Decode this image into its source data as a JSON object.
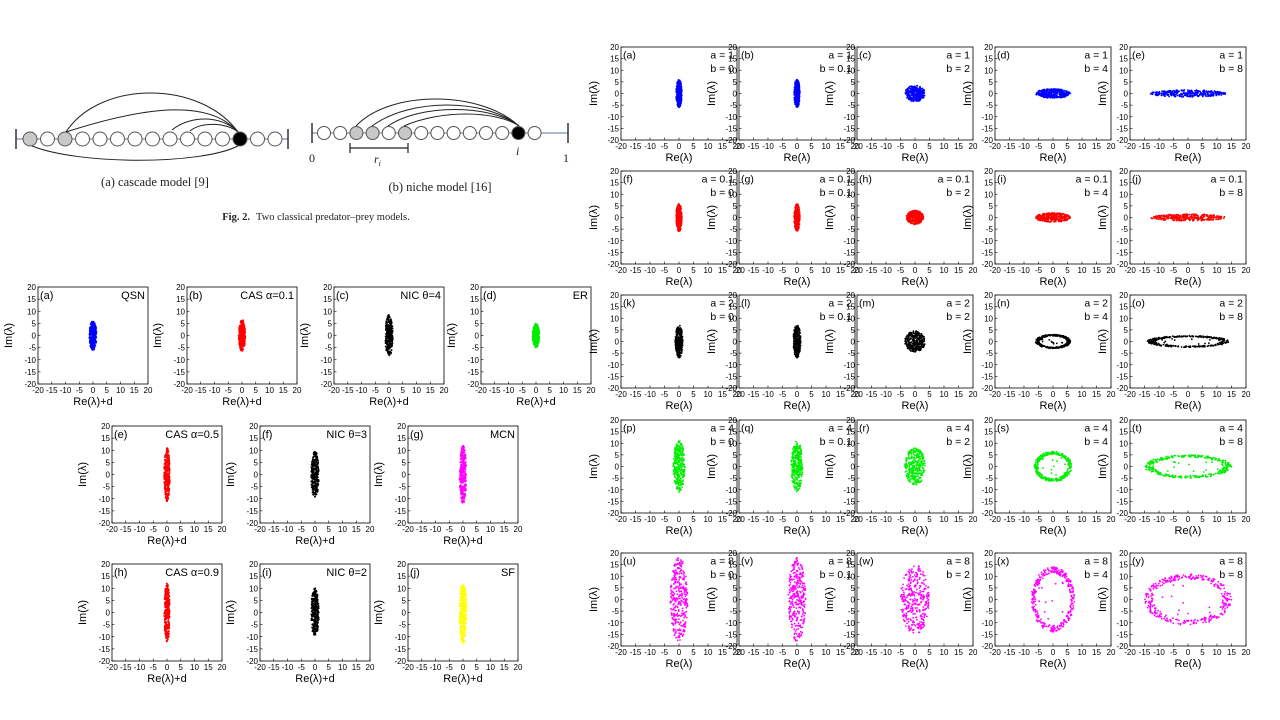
{
  "figure2": {
    "panel_a_caption": "(a) cascade model [9]",
    "panel_b_caption": "(b) niche model [16]",
    "caption_label": "Fig. 2.",
    "caption_text": "Two classical predator–prey models.",
    "niche_axis_start": "0",
    "niche_axis_end": "1",
    "niche_range_label": "r",
    "niche_range_subscript": "i",
    "niche_node_label": "i"
  },
  "colors": {
    "blue": "#0000ff",
    "red": "#ff0000",
    "black": "#000000",
    "green": "#00ee00",
    "magenta": "#ff00ff",
    "yellow": "#ffff00"
  },
  "chart_data": [
    {
      "id": "left-grid",
      "type": "scatter",
      "xlabel": "Re(λ)+d",
      "ylabel": "Im(λ)",
      "xlim": [
        -20,
        20
      ],
      "ylim": [
        -20,
        20
      ],
      "xticks": [
        -20,
        -15,
        -10,
        -5,
        0,
        5,
        10,
        15,
        20
      ],
      "yticks": [
        20,
        15,
        10,
        5,
        0,
        -5,
        -10,
        -15,
        -20
      ],
      "grid": false,
      "panels": [
        {
          "tag": "(a)",
          "title": "QSN",
          "color": "blue",
          "shape": "ellipse",
          "rx": 1.3,
          "ry": 6.0
        },
        {
          "tag": "(b)",
          "title": "CAS α=0.1",
          "color": "red",
          "shape": "ellipse",
          "rx": 1.2,
          "ry": 6.5
        },
        {
          "tag": "(c)",
          "title": "NIC θ=4",
          "color": "black",
          "shape": "ellipse",
          "rx": 1.4,
          "ry": 8.5
        },
        {
          "tag": "(d)",
          "title": "ER",
          "color": "green",
          "shape": "ellipse",
          "rx": 1.2,
          "ry": 5.0
        },
        {
          "tag": "(e)",
          "title": "CAS α=0.5",
          "color": "red",
          "shape": "ellipse",
          "rx": 1.0,
          "ry": 11.0
        },
        {
          "tag": "(f)",
          "title": "NIC θ=3",
          "color": "black",
          "shape": "ellipse",
          "rx": 1.4,
          "ry": 9.5
        },
        {
          "tag": "(g)",
          "title": "MCN",
          "color": "magenta",
          "shape": "ellipse",
          "rx": 1.2,
          "ry": 12.0
        },
        {
          "tag": "(h)",
          "title": "CAS α=0.9",
          "color": "red",
          "shape": "ellipse",
          "rx": 1.0,
          "ry": 12.0
        },
        {
          "tag": "(i)",
          "title": "NIC θ=2",
          "color": "black",
          "shape": "ellipse",
          "rx": 1.4,
          "ry": 10.0
        },
        {
          "tag": "(j)",
          "title": "SF",
          "color": "yellow",
          "shape": "ellipse",
          "rx": 1.2,
          "ry": 13.0
        }
      ]
    },
    {
      "id": "right-grid",
      "type": "scatter",
      "xlabel": "Re(λ)",
      "ylabel": "Im(λ)",
      "xlim": [
        -20,
        20
      ],
      "ylim": [
        -20,
        20
      ],
      "xticks": [
        -20,
        -15,
        -10,
        -5,
        0,
        5,
        10,
        15,
        20
      ],
      "yticks": [
        20,
        15,
        10,
        5,
        0,
        -5,
        -10,
        -15,
        -20
      ],
      "grid": false,
      "panels": [
        {
          "tag": "(a)",
          "a": "a = 1",
          "b": "b = 0",
          "color": "blue",
          "shape": "ellipse",
          "rx": 1.0,
          "ry": 6.0
        },
        {
          "tag": "(b)",
          "a": "a = 1",
          "b": "b = 0.1",
          "color": "blue",
          "shape": "ellipse",
          "rx": 1.0,
          "ry": 6.0
        },
        {
          "tag": "(c)",
          "a": "a = 1",
          "b": "b = 2",
          "color": "blue",
          "shape": "ellipse",
          "rx": 3.5,
          "ry": 3.5
        },
        {
          "tag": "(d)",
          "a": "a = 1",
          "b": "b = 4",
          "color": "blue",
          "shape": "ellipse",
          "rx": 6.0,
          "ry": 2.0
        },
        {
          "tag": "(e)",
          "a": "a = 1",
          "b": "b = 8",
          "color": "blue",
          "shape": "ellipse",
          "rx": 13.0,
          "ry": 1.5
        },
        {
          "tag": "(f)",
          "a": "a = 0.1",
          "b": "b = 0",
          "color": "red",
          "shape": "ellipse",
          "rx": 1.0,
          "ry": 6.0
        },
        {
          "tag": "(g)",
          "a": "a = 0.1",
          "b": "b = 0.1",
          "color": "red",
          "shape": "ellipse",
          "rx": 1.0,
          "ry": 6.0
        },
        {
          "tag": "(h)",
          "a": "a = 0.1",
          "b": "b = 2",
          "color": "red",
          "shape": "ellipse",
          "rx": 3.0,
          "ry": 3.0
        },
        {
          "tag": "(i)",
          "a": "a = 0.1",
          "b": "b = 4",
          "color": "red",
          "shape": "ellipse",
          "rx": 6.0,
          "ry": 2.0
        },
        {
          "tag": "(j)",
          "a": "a = 0.1",
          "b": "b = 8",
          "color": "red",
          "shape": "ellipse",
          "rx": 13.0,
          "ry": 1.5
        },
        {
          "tag": "(k)",
          "a": "a = 2",
          "b": "b = 0",
          "color": "black",
          "shape": "ellipse",
          "rx": 1.3,
          "ry": 7.0
        },
        {
          "tag": "(l)",
          "a": "a = 2",
          "b": "b = 0.1",
          "color": "black",
          "shape": "ellipse",
          "rx": 1.3,
          "ry": 7.0
        },
        {
          "tag": "(m)",
          "a": "a = 2",
          "b": "b = 2",
          "color": "black",
          "shape": "ellipse",
          "rx": 3.5,
          "ry": 4.5
        },
        {
          "tag": "(n)",
          "a": "a = 2",
          "b": "b = 4",
          "color": "black",
          "shape": "ring",
          "rx": 6.0,
          "ry": 3.0
        },
        {
          "tag": "(o)",
          "a": "a = 2",
          "b": "b = 8",
          "color": "black",
          "shape": "ring",
          "rx": 14.0,
          "ry": 2.5
        },
        {
          "tag": "(p)",
          "a": "a = 4",
          "b": "b = 0",
          "color": "green",
          "shape": "ellipse",
          "rx": 2.0,
          "ry": 11.0
        },
        {
          "tag": "(q)",
          "a": "a = 4",
          "b": "b = 0.1",
          "color": "green",
          "shape": "ellipse",
          "rx": 2.0,
          "ry": 11.0
        },
        {
          "tag": "(r)",
          "a": "a = 4",
          "b": "b = 2",
          "color": "green",
          "shape": "ellipse",
          "rx": 3.5,
          "ry": 8.0
        },
        {
          "tag": "(s)",
          "a": "a = 4",
          "b": "b = 4",
          "color": "green",
          "shape": "ring",
          "rx": 6.5,
          "ry": 6.5
        },
        {
          "tag": "(t)",
          "a": "a = 4",
          "b": "b = 8",
          "color": "green",
          "shape": "ring",
          "rx": 15.0,
          "ry": 5.0
        },
        {
          "tag": "(u)",
          "a": "a = 8",
          "b": "b = 0",
          "color": "magenta",
          "shape": "ellipse",
          "rx": 3.0,
          "ry": 18.0
        },
        {
          "tag": "(v)",
          "a": "a = 8",
          "b": "b = 0.1",
          "color": "magenta",
          "shape": "ellipse",
          "rx": 3.0,
          "ry": 18.0
        },
        {
          "tag": "(w)",
          "a": "a = 8",
          "b": "b = 2",
          "color": "magenta",
          "shape": "ellipse",
          "rx": 5.0,
          "ry": 15.0
        },
        {
          "tag": "(x)",
          "a": "a = 8",
          "b": "b = 4",
          "color": "magenta",
          "shape": "ring",
          "rx": 7.5,
          "ry": 14.0
        },
        {
          "tag": "(y)",
          "a": "a = 8",
          "b": "b = 8",
          "color": "magenta",
          "shape": "ring",
          "rx": 15.0,
          "ry": 11.0
        }
      ]
    }
  ]
}
